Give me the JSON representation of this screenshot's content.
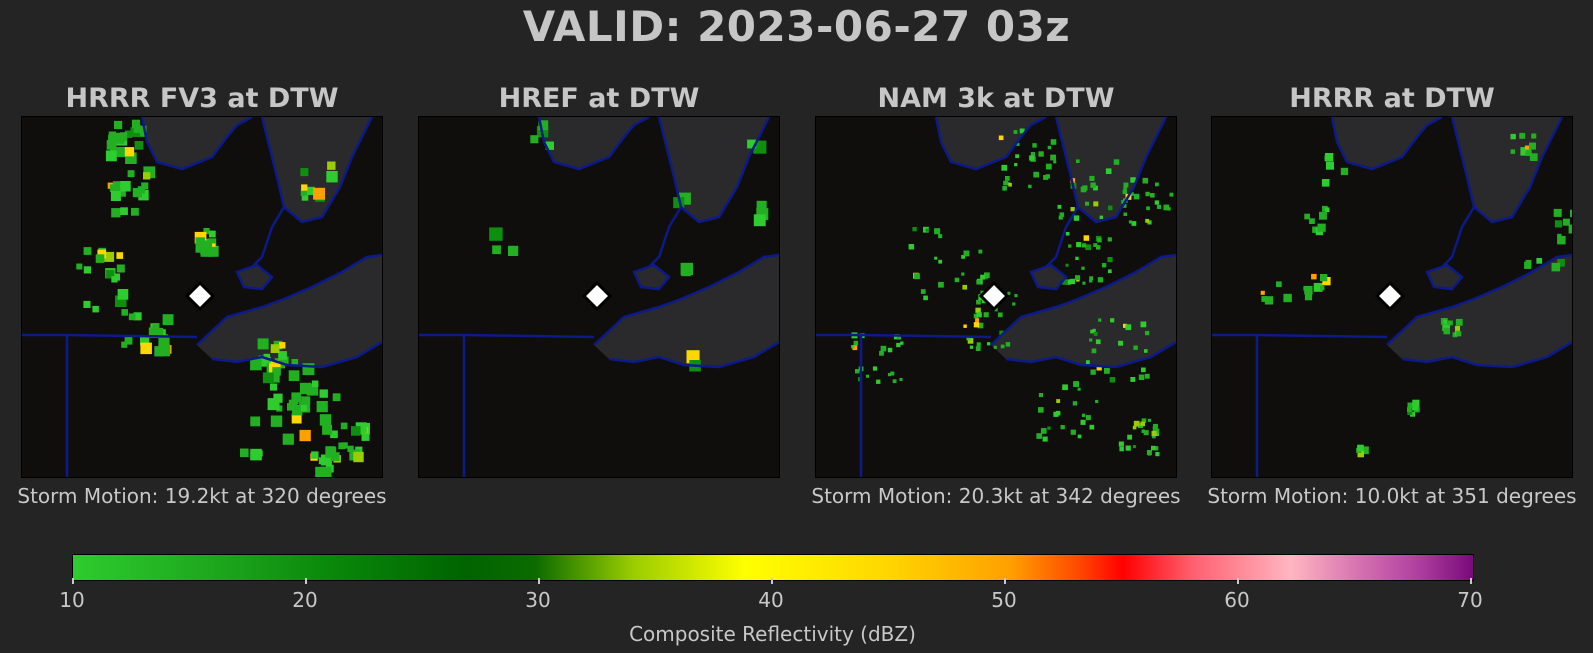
{
  "title": "VALID: 2023-06-27 03z",
  "panels": [
    {
      "title": "HRRR FV3 at DTW",
      "motion": "Storm Motion: 19.2kt at 320 degrees",
      "style": "blocky"
    },
    {
      "title": "HREF at DTW",
      "motion": "",
      "style": "sparse"
    },
    {
      "title": "NAM 3k at DTW",
      "motion": "Storm Motion: 20.3kt at 342 degrees",
      "style": "speckle"
    },
    {
      "title": "HRRR at DTW",
      "motion": "Storm Motion: 10.0kt at 351 degrees",
      "style": "clustered"
    }
  ],
  "colorbar": {
    "label": "Composite Reflectivity (dBZ)",
    "ticks": [
      "10",
      "20",
      "30",
      "40",
      "50",
      "60",
      "70"
    ],
    "range": [
      10,
      70
    ]
  },
  "colors": {
    "background": "#242424",
    "map_water": "#100d0d",
    "map_land": "#2a2a2c",
    "boundary": "#0c1a8a",
    "marker": "#ffffff"
  },
  "icons": {
    "station_marker": "diamond"
  }
}
